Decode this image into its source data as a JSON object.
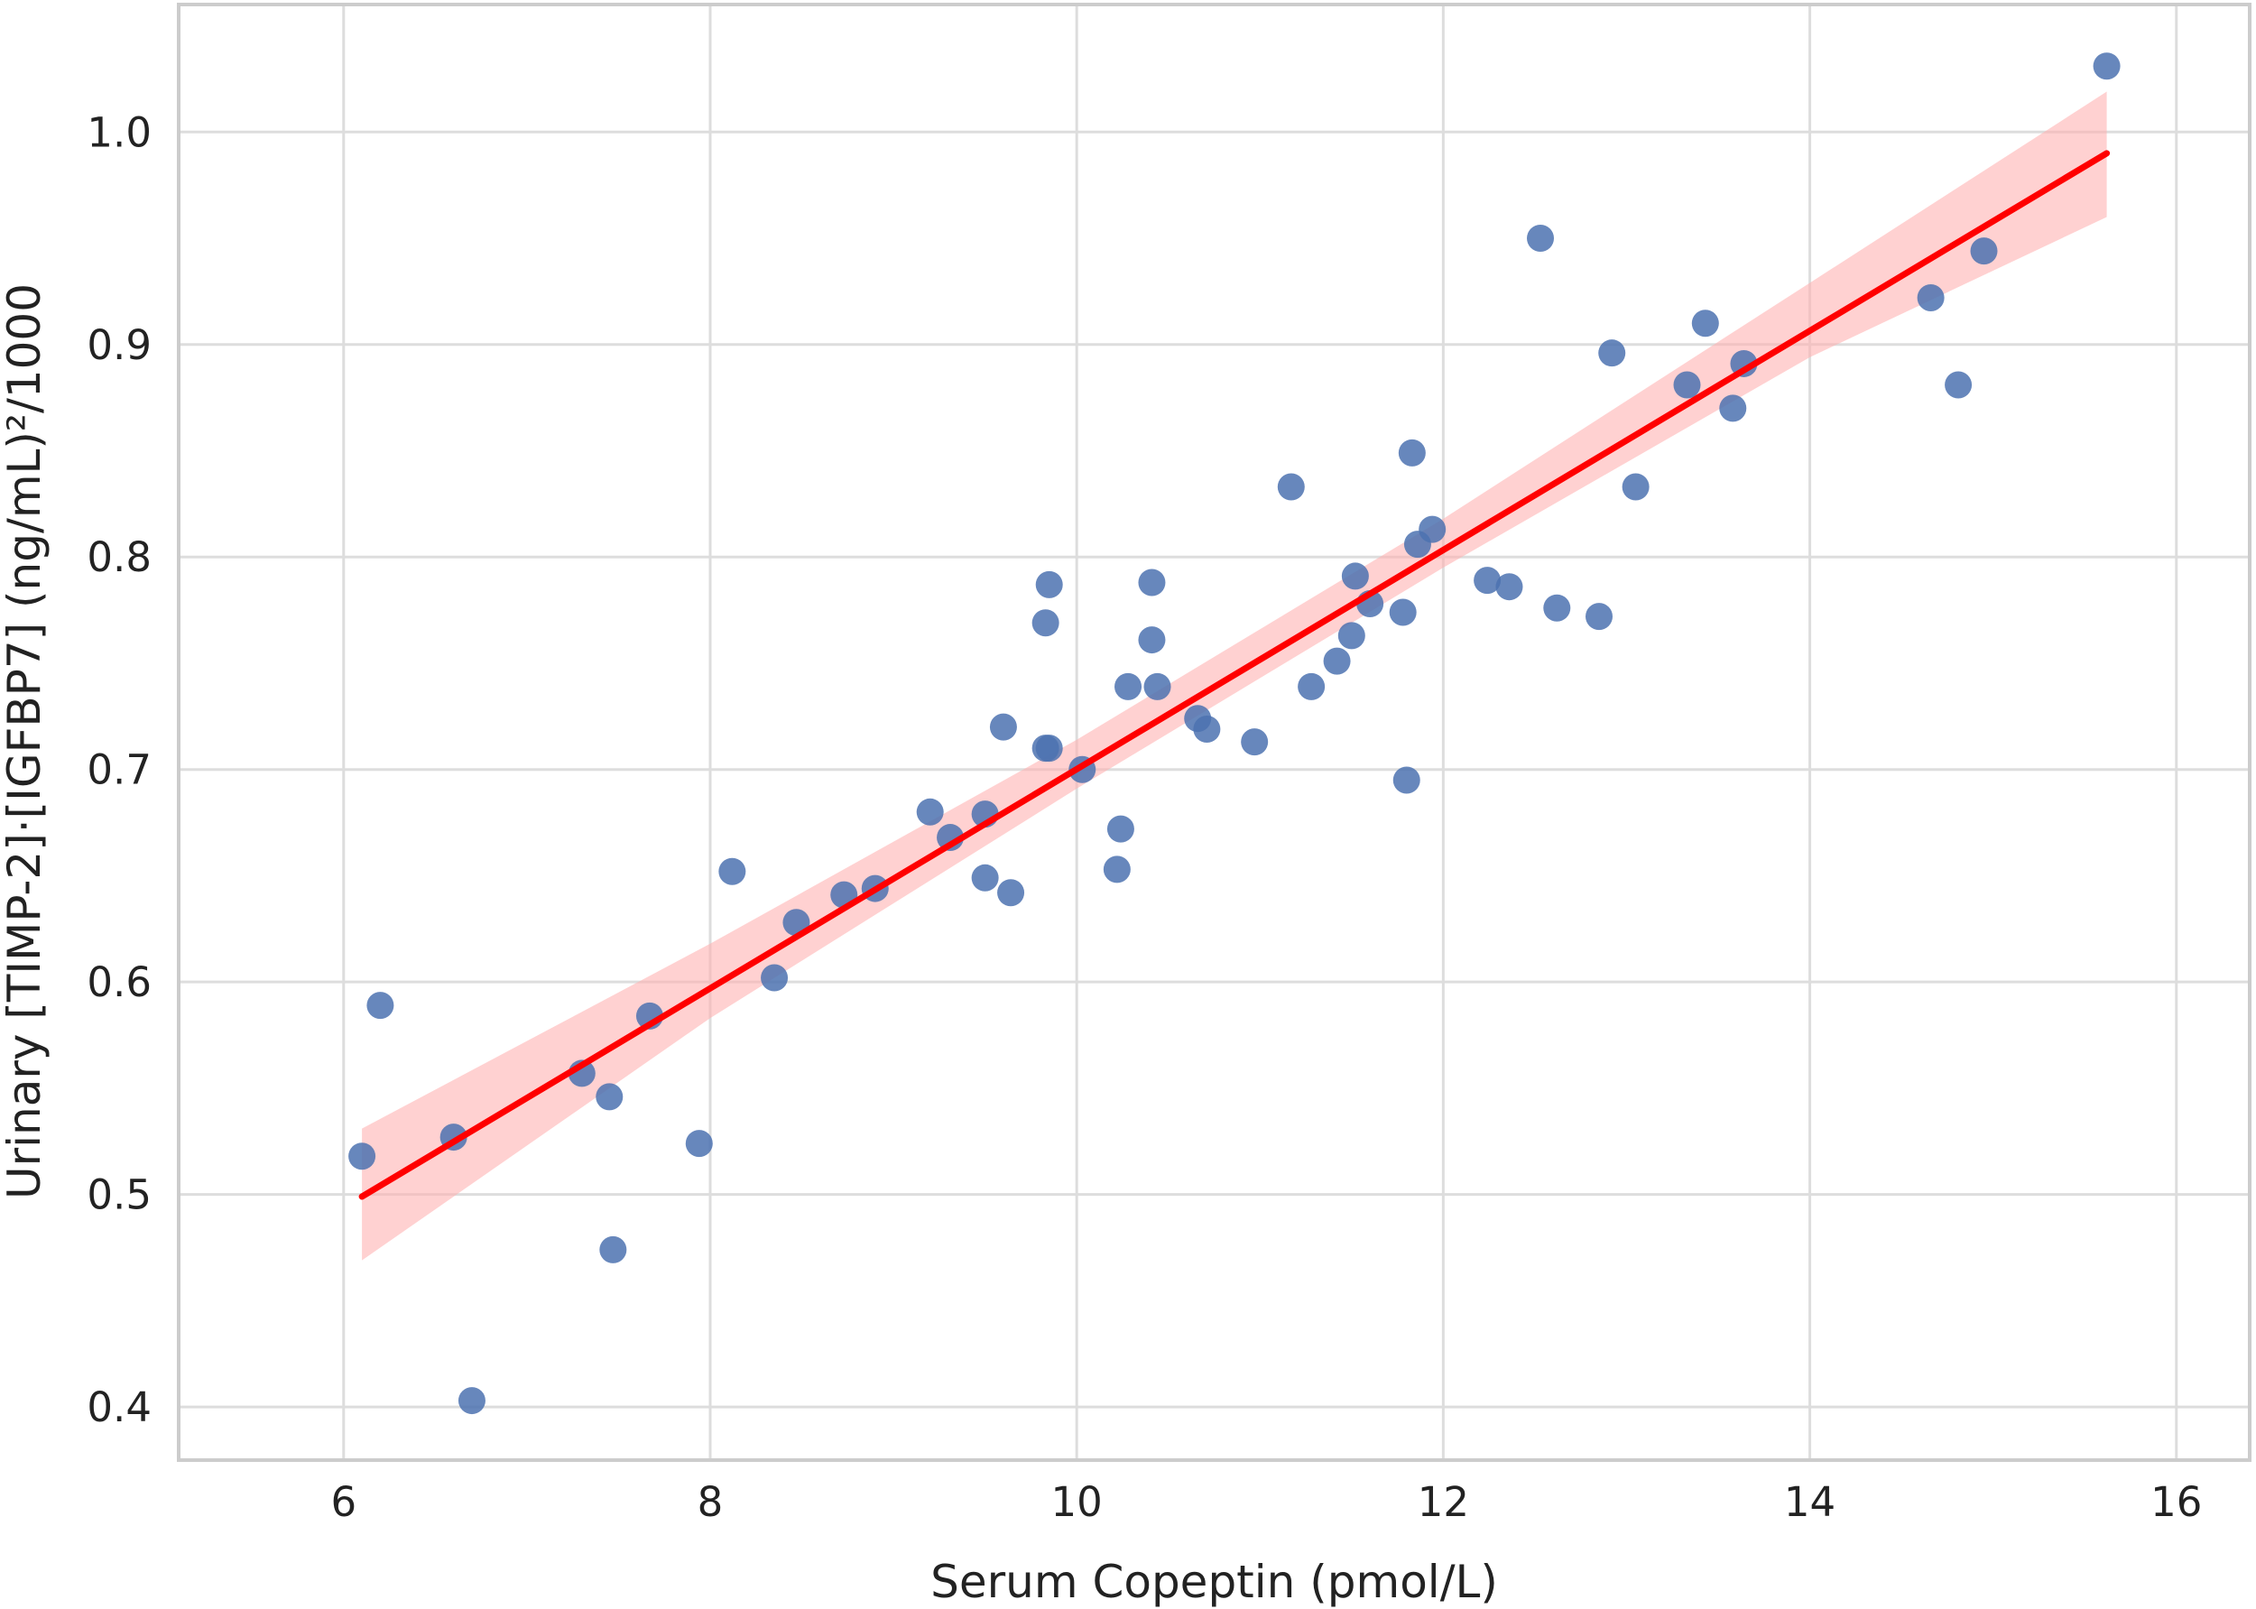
{
  "chart_data": {
    "type": "scatter",
    "title": "",
    "xlabel": "Serum Copeptin (pmol/L)",
    "ylabel": "Urinary [TIMP-2]·[IGFBP7] (ng/mL)²/1000",
    "xlim": [
      5.1,
      16.4
    ],
    "ylim": [
      0.375,
      1.06
    ],
    "xticks": [
      6,
      8,
      10,
      12,
      14,
      16
    ],
    "yticks": [
      0.4,
      0.5,
      0.6,
      0.7,
      0.8,
      0.9,
      1.0
    ],
    "xtick_labels": [
      "6",
      "8",
      "10",
      "12",
      "14",
      "16"
    ],
    "ytick_labels": [
      "0.4",
      "0.5",
      "0.6",
      "0.7",
      "0.8",
      "0.9",
      "1.0"
    ],
    "grid": true,
    "legend": "none",
    "colors": {
      "points": "#4c72b0",
      "regression_line": "#ff0000",
      "confidence_band": "#ffb3b3"
    },
    "points": [
      {
        "x": 6.1,
        "y": 0.518
      },
      {
        "x": 6.2,
        "y": 0.589
      },
      {
        "x": 6.6,
        "y": 0.527
      },
      {
        "x": 6.7,
        "y": 0.403
      },
      {
        "x": 7.3,
        "y": 0.557
      },
      {
        "x": 7.45,
        "y": 0.546
      },
      {
        "x": 7.47,
        "y": 0.474
      },
      {
        "x": 7.67,
        "y": 0.584
      },
      {
        "x": 7.94,
        "y": 0.524
      },
      {
        "x": 8.12,
        "y": 0.652
      },
      {
        "x": 8.35,
        "y": 0.602
      },
      {
        "x": 8.47,
        "y": 0.628
      },
      {
        "x": 8.73,
        "y": 0.641
      },
      {
        "x": 8.9,
        "y": 0.644
      },
      {
        "x": 9.2,
        "y": 0.68
      },
      {
        "x": 9.31,
        "y": 0.668
      },
      {
        "x": 9.5,
        "y": 0.679
      },
      {
        "x": 9.5,
        "y": 0.649
      },
      {
        "x": 9.6,
        "y": 0.72
      },
      {
        "x": 9.64,
        "y": 0.642
      },
      {
        "x": 9.83,
        "y": 0.71
      },
      {
        "x": 9.85,
        "y": 0.71
      },
      {
        "x": 9.83,
        "y": 0.769
      },
      {
        "x": 9.85,
        "y": 0.787
      },
      {
        "x": 10.03,
        "y": 0.7
      },
      {
        "x": 10.22,
        "y": 0.653
      },
      {
        "x": 10.24,
        "y": 0.672
      },
      {
        "x": 10.28,
        "y": 0.739
      },
      {
        "x": 10.41,
        "y": 0.788
      },
      {
        "x": 10.41,
        "y": 0.761
      },
      {
        "x": 10.44,
        "y": 0.739
      },
      {
        "x": 10.66,
        "y": 0.724
      },
      {
        "x": 10.71,
        "y": 0.719
      },
      {
        "x": 10.97,
        "y": 0.713
      },
      {
        "x": 11.17,
        "y": 0.833
      },
      {
        "x": 11.28,
        "y": 0.739
      },
      {
        "x": 11.42,
        "y": 0.751
      },
      {
        "x": 11.5,
        "y": 0.763
      },
      {
        "x": 11.52,
        "y": 0.791
      },
      {
        "x": 11.6,
        "y": 0.778
      },
      {
        "x": 11.78,
        "y": 0.774
      },
      {
        "x": 11.8,
        "y": 0.695
      },
      {
        "x": 11.83,
        "y": 0.849
      },
      {
        "x": 11.86,
        "y": 0.806
      },
      {
        "x": 11.94,
        "y": 0.813
      },
      {
        "x": 12.24,
        "y": 0.789
      },
      {
        "x": 12.36,
        "y": 0.786
      },
      {
        "x": 12.53,
        "y": 0.95
      },
      {
        "x": 12.62,
        "y": 0.776
      },
      {
        "x": 12.85,
        "y": 0.772
      },
      {
        "x": 12.92,
        "y": 0.896
      },
      {
        "x": 13.05,
        "y": 0.833
      },
      {
        "x": 13.33,
        "y": 0.881
      },
      {
        "x": 13.43,
        "y": 0.91
      },
      {
        "x": 13.58,
        "y": 0.87
      },
      {
        "x": 13.64,
        "y": 0.891
      },
      {
        "x": 14.66,
        "y": 0.922
      },
      {
        "x": 14.81,
        "y": 0.881
      },
      {
        "x": 14.95,
        "y": 0.944
      },
      {
        "x": 15.62,
        "y": 1.031
      }
    ],
    "regression_line": {
      "x": [
        6.1,
        15.62
      ],
      "y": [
        0.499,
        0.99
      ]
    },
    "confidence_band": {
      "x": [
        6.1,
        8.0,
        10.0,
        12.0,
        14.0,
        15.62
      ],
      "lower": [
        0.469,
        0.583,
        0.691,
        0.795,
        0.894,
        0.96
      ],
      "upper": [
        0.531,
        0.618,
        0.714,
        0.818,
        0.929,
        1.019
      ]
    }
  }
}
